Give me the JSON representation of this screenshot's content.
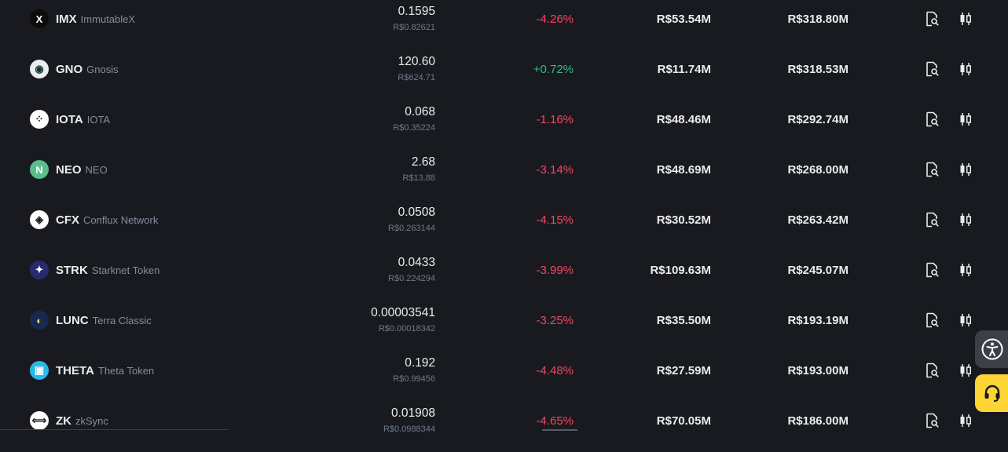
{
  "rows": [
    {
      "symbol": "IMX",
      "name": "ImmutableX",
      "price": "0.1595",
      "price_brl": "R$0.82621",
      "change": "-4.26%",
      "change_dir": "neg",
      "volume": "R$53.54M",
      "market_cap": "R$318.80M",
      "icon": "imx-logo-icon",
      "icon_glyph": "X",
      "icon_bg": "#0d0d0d",
      "icon_fg": "#ffffff"
    },
    {
      "symbol": "GNO",
      "name": "Gnosis",
      "price": "120.60",
      "price_brl": "R$624.71",
      "change": "+0.72%",
      "change_dir": "pos",
      "volume": "R$11.74M",
      "market_cap": "R$318.53M",
      "icon": "gno-logo-icon",
      "icon_glyph": "◉",
      "icon_bg": "#e9eef2",
      "icon_fg": "#133629"
    },
    {
      "symbol": "IOTA",
      "name": "IOTA",
      "price": "0.068",
      "price_brl": "R$0.35224",
      "change": "-1.16%",
      "change_dir": "neg",
      "volume": "R$48.46M",
      "market_cap": "R$292.74M",
      "icon": "iota-logo-icon",
      "icon_glyph": "⁘",
      "icon_bg": "#ffffff",
      "icon_fg": "#131f37"
    },
    {
      "symbol": "NEO",
      "name": "NEO",
      "price": "2.68",
      "price_brl": "R$13.88",
      "change": "-3.14%",
      "change_dir": "neg",
      "volume": "R$48.69M",
      "market_cap": "R$268.00M",
      "icon": "neo-logo-icon",
      "icon_glyph": "N",
      "icon_bg": "#58be8a",
      "icon_fg": "#ffffff"
    },
    {
      "symbol": "CFX",
      "name": "Conflux Network",
      "price": "0.0508",
      "price_brl": "R$0.263144",
      "change": "-4.15%",
      "change_dir": "neg",
      "volume": "R$30.52M",
      "market_cap": "R$263.42M",
      "icon": "cfx-logo-icon",
      "icon_glyph": "◈",
      "icon_bg": "#ffffff",
      "icon_fg": "#1a1a1a"
    },
    {
      "symbol": "STRK",
      "name": "Starknet Token",
      "price": "0.0433",
      "price_brl": "R$0.224294",
      "change": "-3.99%",
      "change_dir": "neg",
      "volume": "R$109.63M",
      "market_cap": "R$245.07M",
      "icon": "strk-logo-icon",
      "icon_glyph": "✦",
      "icon_bg": "#29296e",
      "icon_fg": "#ffffff"
    },
    {
      "symbol": "LUNC",
      "name": "Terra Classic",
      "price": "0.00003541",
      "price_brl": "R$0.00018342",
      "change": "-3.25%",
      "change_dir": "neg",
      "volume": "R$35.50M",
      "market_cap": "R$193.19M",
      "icon": "lunc-logo-icon",
      "icon_glyph": "◐",
      "icon_bg": "#172852",
      "icon_fg": "#f9d85e"
    },
    {
      "symbol": "THETA",
      "name": "Theta Token",
      "price": "0.192",
      "price_brl": "R$0.99456",
      "change": "-4.48%",
      "change_dir": "neg",
      "volume": "R$27.59M",
      "market_cap": "R$193.00M",
      "icon": "theta-logo-icon",
      "icon_glyph": "▣",
      "icon_bg": "#2ab8e6",
      "icon_fg": "#ffffff"
    },
    {
      "symbol": "ZK",
      "name": "zkSync",
      "price": "0.01908",
      "price_brl": "R$0.0988344",
      "change": "-4.65%",
      "change_dir": "neg",
      "volume": "R$70.05M",
      "market_cap": "R$186.00M",
      "icon": "zk-logo-icon",
      "icon_glyph": "⟺",
      "icon_bg": "#ffffff",
      "icon_fg": "#1e1e1e"
    }
  ],
  "actions": {
    "details_icon": "document-search-icon",
    "trade_icon": "candlestick-chart-icon"
  },
  "floating": {
    "accessibility_icon": "accessibility-icon",
    "support_icon": "headset-support-icon",
    "support_color": "#fcd535"
  },
  "colors": {
    "background": "#181a20",
    "negative": "#f6465d",
    "positive": "#2ebd85",
    "muted": "#848e9c"
  }
}
